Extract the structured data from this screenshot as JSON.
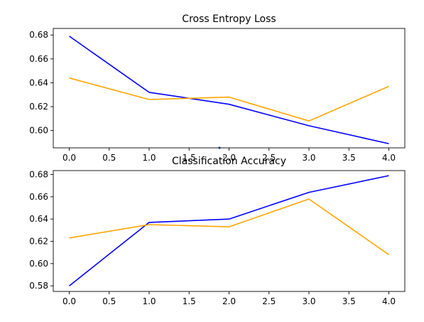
{
  "chart_data": [
    {
      "type": "line",
      "title": "Cross Entropy Loss",
      "xlabel": "",
      "ylabel": "",
      "x": [
        0,
        1,
        2,
        3,
        4
      ],
      "xlim": [
        -0.2,
        4.2
      ],
      "ylim": [
        0.5855,
        0.6855
      ],
      "xticks": [
        0,
        0.5,
        1,
        1.5,
        2,
        2.5,
        3,
        3.5,
        4
      ],
      "xtick_labels": [
        "0.0",
        "0.5",
        "1.0",
        "1.5",
        "2.0",
        "2.5",
        "3.0",
        "3.5",
        "4.0"
      ],
      "yticks": [
        0.6,
        0.62,
        0.64,
        0.66,
        0.68
      ],
      "ytick_labels": [
        "0.60",
        "0.62",
        "0.64",
        "0.66",
        "0.68"
      ],
      "grid": false,
      "series": [
        {
          "color": "#0000ff",
          "values": [
            0.679,
            0.632,
            0.622,
            0.604,
            0.589
          ]
        },
        {
          "color": "#ffa500",
          "values": [
            0.644,
            0.626,
            0.628,
            0.608,
            0.637
          ]
        }
      ],
      "annotations": [
        {
          "type": "marker",
          "x": 1.88,
          "y": 0.5855,
          "color": "#1f5fbf"
        }
      ]
    },
    {
      "type": "line",
      "title": "Classification Accuracy",
      "xlabel": "",
      "ylabel": "",
      "x": [
        0,
        1,
        2,
        3,
        4
      ],
      "xlim": [
        -0.2,
        4.2
      ],
      "ylim": [
        0.575,
        0.6835
      ],
      "xticks": [
        0,
        0.5,
        1,
        1.5,
        2,
        2.5,
        3,
        3.5,
        4
      ],
      "xtick_labels": [
        "0.0",
        "0.5",
        "1.0",
        "1.5",
        "2.0",
        "2.5",
        "3.0",
        "3.5",
        "4.0"
      ],
      "yticks": [
        0.58,
        0.6,
        0.62,
        0.64,
        0.66,
        0.68
      ],
      "ytick_labels": [
        "0.58",
        "0.60",
        "0.62",
        "0.64",
        "0.66",
        "0.68"
      ],
      "grid": false,
      "series": [
        {
          "color": "#0000ff",
          "values": [
            0.58,
            0.637,
            0.64,
            0.664,
            0.679
          ]
        },
        {
          "color": "#ffa500",
          "values": [
            0.623,
            0.635,
            0.633,
            0.658,
            0.608
          ]
        }
      ]
    }
  ]
}
